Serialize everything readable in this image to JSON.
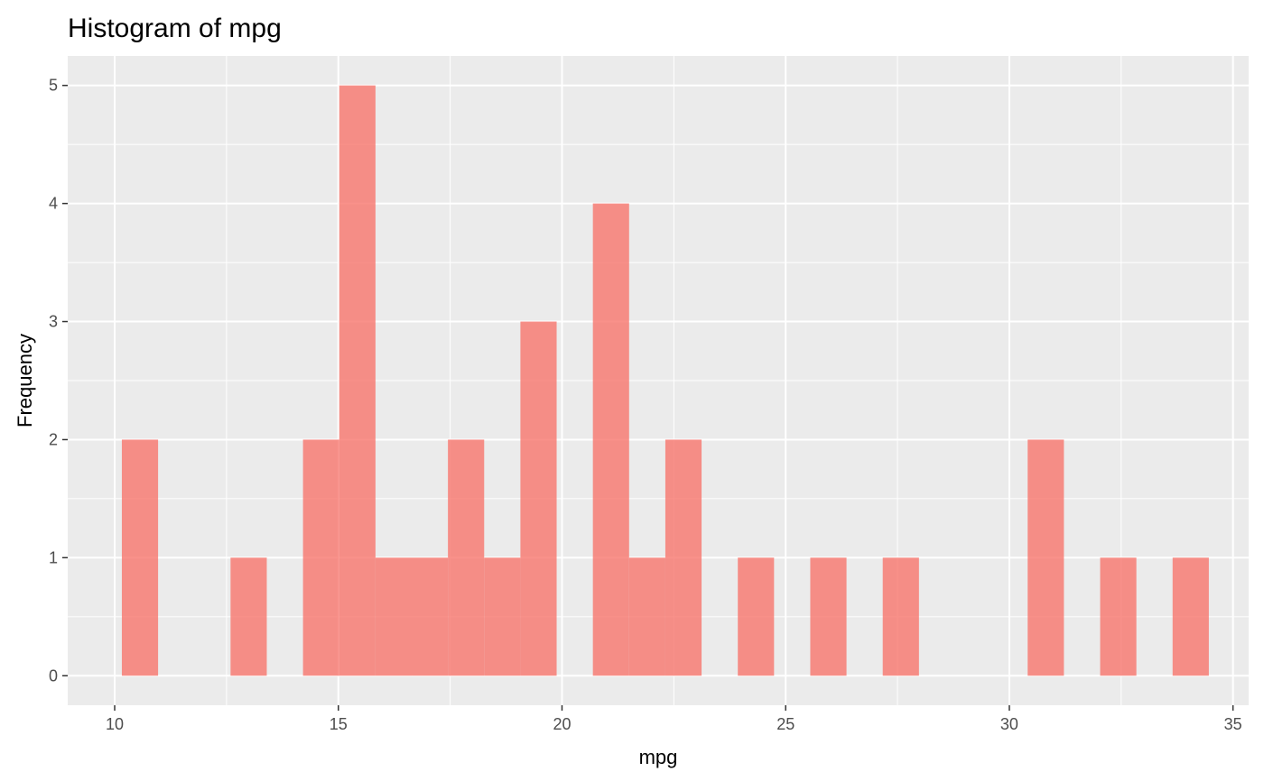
{
  "chart_data": {
    "type": "bar",
    "title": "Histogram of mpg",
    "xlabel": "mpg",
    "ylabel": "Frequency",
    "xlim": [
      8.95,
      35.35
    ],
    "ylim": [
      -0.25,
      5.25
    ],
    "x_ticks": [
      10,
      15,
      20,
      25,
      30,
      35
    ],
    "y_ticks": [
      0,
      1,
      2,
      3,
      4,
      5
    ],
    "grid": true,
    "bin_width": 0.81,
    "bins": [
      {
        "start": 10.16,
        "end": 10.97,
        "count": 2
      },
      {
        "start": 10.97,
        "end": 11.78,
        "count": 0
      },
      {
        "start": 11.78,
        "end": 12.59,
        "count": 0
      },
      {
        "start": 12.59,
        "end": 13.4,
        "count": 1
      },
      {
        "start": 13.4,
        "end": 14.21,
        "count": 0
      },
      {
        "start": 14.21,
        "end": 15.02,
        "count": 2
      },
      {
        "start": 15.02,
        "end": 15.83,
        "count": 5
      },
      {
        "start": 15.83,
        "end": 16.64,
        "count": 1
      },
      {
        "start": 16.64,
        "end": 17.45,
        "count": 1
      },
      {
        "start": 17.45,
        "end": 18.26,
        "count": 2
      },
      {
        "start": 18.26,
        "end": 19.07,
        "count": 1
      },
      {
        "start": 19.07,
        "end": 19.88,
        "count": 3
      },
      {
        "start": 19.88,
        "end": 20.69,
        "count": 0
      },
      {
        "start": 20.69,
        "end": 21.5,
        "count": 4
      },
      {
        "start": 21.5,
        "end": 22.31,
        "count": 1
      },
      {
        "start": 22.31,
        "end": 23.12,
        "count": 2
      },
      {
        "start": 23.12,
        "end": 23.93,
        "count": 0
      },
      {
        "start": 23.93,
        "end": 24.74,
        "count": 1
      },
      {
        "start": 24.74,
        "end": 25.55,
        "count": 0
      },
      {
        "start": 25.55,
        "end": 26.36,
        "count": 1
      },
      {
        "start": 26.36,
        "end": 27.17,
        "count": 0
      },
      {
        "start": 27.17,
        "end": 27.98,
        "count": 1
      },
      {
        "start": 27.98,
        "end": 28.79,
        "count": 0
      },
      {
        "start": 28.79,
        "end": 29.6,
        "count": 0
      },
      {
        "start": 29.6,
        "end": 30.41,
        "count": 0
      },
      {
        "start": 30.41,
        "end": 31.22,
        "count": 2
      },
      {
        "start": 31.22,
        "end": 32.03,
        "count": 0
      },
      {
        "start": 32.03,
        "end": 32.84,
        "count": 1
      },
      {
        "start": 32.84,
        "end": 33.65,
        "count": 0
      },
      {
        "start": 33.65,
        "end": 34.46,
        "count": 1
      }
    ],
    "colors": {
      "fill": "#F8766D",
      "panel": "#EBEBEB",
      "grid": "#FFFFFF"
    }
  }
}
